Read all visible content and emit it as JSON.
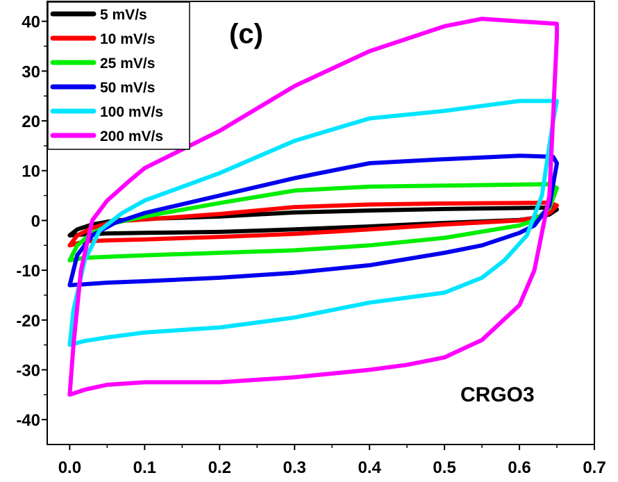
{
  "chart_data": {
    "type": "line",
    "title": "",
    "xlabel": "",
    "ylabel": "",
    "xlim": [
      -0.03,
      0.7
    ],
    "ylim": [
      -45,
      44
    ],
    "xticks": [
      0.0,
      0.1,
      0.2,
      0.3,
      0.4,
      0.5,
      0.6,
      0.7
    ],
    "xtick_labels": [
      "0.0",
      "0.1",
      "0.2",
      "0.3",
      "0.4",
      "0.5",
      "0.6",
      "0.7"
    ],
    "yticks": [
      -40,
      -30,
      -20,
      -10,
      0,
      10,
      20,
      30,
      40
    ],
    "ytick_labels": [
      "-40",
      "-30",
      "-20",
      "-10",
      "0",
      "10",
      "20",
      "30",
      "40"
    ],
    "grid": false,
    "legend_position": "top-left",
    "annotations": {
      "panel": "(c)",
      "sample": "CRGO3"
    },
    "series": [
      {
        "name": "5 mV/s",
        "color": "#000000",
        "x": [
          0.0,
          0.01,
          0.03,
          0.06,
          0.1,
          0.2,
          0.3,
          0.4,
          0.5,
          0.6,
          0.64,
          0.65,
          0.64,
          0.62,
          0.6,
          0.5,
          0.4,
          0.3,
          0.2,
          0.1,
          0.05,
          0.02,
          0.0
        ],
        "y": [
          -3,
          -1.8,
          -0.8,
          0,
          0.3,
          0.8,
          1.6,
          2.0,
          2.3,
          2.5,
          2.6,
          2.2,
          1.2,
          0.5,
          0.1,
          -0.5,
          -1.2,
          -1.8,
          -2.3,
          -2.5,
          -2.6,
          -2.8,
          -3
        ]
      },
      {
        "name": "10 mV/s",
        "color": "#ff0000",
        "x": [
          0.0,
          0.01,
          0.03,
          0.06,
          0.1,
          0.2,
          0.3,
          0.4,
          0.5,
          0.6,
          0.64,
          0.65,
          0.64,
          0.62,
          0.6,
          0.5,
          0.4,
          0.3,
          0.2,
          0.1,
          0.05,
          0.02,
          0.0
        ],
        "y": [
          -5,
          -3,
          -1.5,
          -0.2,
          0.2,
          1.3,
          2.7,
          3.2,
          3.4,
          3.5,
          3.6,
          3.0,
          1.5,
          0.5,
          0.0,
          -0.8,
          -1.8,
          -2.7,
          -3.3,
          -3.8,
          -4.0,
          -4.2,
          -5
        ]
      },
      {
        "name": "25 mV/s",
        "color": "#00ee00",
        "x": [
          0.0,
          0.01,
          0.03,
          0.06,
          0.1,
          0.2,
          0.3,
          0.4,
          0.5,
          0.6,
          0.64,
          0.65,
          0.64,
          0.62,
          0.6,
          0.5,
          0.4,
          0.3,
          0.2,
          0.1,
          0.05,
          0.02,
          0.0
        ],
        "y": [
          -8,
          -5,
          -2.5,
          -0.5,
          0.8,
          3.5,
          6.0,
          6.8,
          7.0,
          7.2,
          7.3,
          6.5,
          2.5,
          0.0,
          -1.0,
          -3.5,
          -5.0,
          -6.0,
          -6.5,
          -7.0,
          -7.3,
          -7.5,
          -8
        ]
      },
      {
        "name": "50 mV/s",
        "color": "#0000ee",
        "x": [
          0.0,
          0.01,
          0.03,
          0.06,
          0.1,
          0.2,
          0.3,
          0.4,
          0.5,
          0.6,
          0.645,
          0.65,
          0.64,
          0.62,
          0.6,
          0.55,
          0.5,
          0.4,
          0.3,
          0.2,
          0.1,
          0.05,
          0.02,
          0.0
        ],
        "y": [
          -13,
          -7,
          -3,
          -0.5,
          1.5,
          5.0,
          8.5,
          11.5,
          12.3,
          13.0,
          12.8,
          11.5,
          3.0,
          -1.0,
          -2.5,
          -5.0,
          -6.5,
          -9.0,
          -10.5,
          -11.5,
          -12.2,
          -12.5,
          -12.8,
          -13
        ]
      },
      {
        "name": "100 mV/s",
        "color": "#00e5ff",
        "x": [
          0.0,
          0.005,
          0.02,
          0.04,
          0.07,
          0.1,
          0.2,
          0.3,
          0.4,
          0.5,
          0.6,
          0.65,
          0.645,
          0.63,
          0.61,
          0.58,
          0.55,
          0.5,
          0.4,
          0.3,
          0.2,
          0.1,
          0.05,
          0.02,
          0.0
        ],
        "y": [
          -25,
          -18,
          -8,
          -2,
          1.5,
          4.0,
          9.5,
          16.0,
          20.5,
          22.0,
          24.0,
          24.0,
          20.0,
          5.0,
          -3.0,
          -8.0,
          -11.5,
          -14.5,
          -16.5,
          -19.5,
          -21.5,
          -22.5,
          -23.5,
          -24.2,
          -25
        ]
      },
      {
        "name": "200 mV/s",
        "color": "#ff00ff",
        "x": [
          0.0,
          0.005,
          0.015,
          0.03,
          0.05,
          0.08,
          0.1,
          0.2,
          0.3,
          0.4,
          0.5,
          0.55,
          0.6,
          0.65,
          0.65,
          0.64,
          0.62,
          0.6,
          0.55,
          0.5,
          0.45,
          0.4,
          0.3,
          0.2,
          0.1,
          0.05,
          0.02,
          0.0
        ],
        "y": [
          -35,
          -25,
          -10,
          0,
          4.0,
          8.0,
          10.5,
          18.0,
          27.0,
          34.0,
          39.0,
          40.5,
          40.0,
          39.5,
          37.0,
          5.0,
          -10.0,
          -17.0,
          -24.0,
          -27.5,
          -29.0,
          -30.0,
          -31.5,
          -32.5,
          -32.5,
          -33.0,
          -34.0,
          -35
        ]
      }
    ]
  }
}
